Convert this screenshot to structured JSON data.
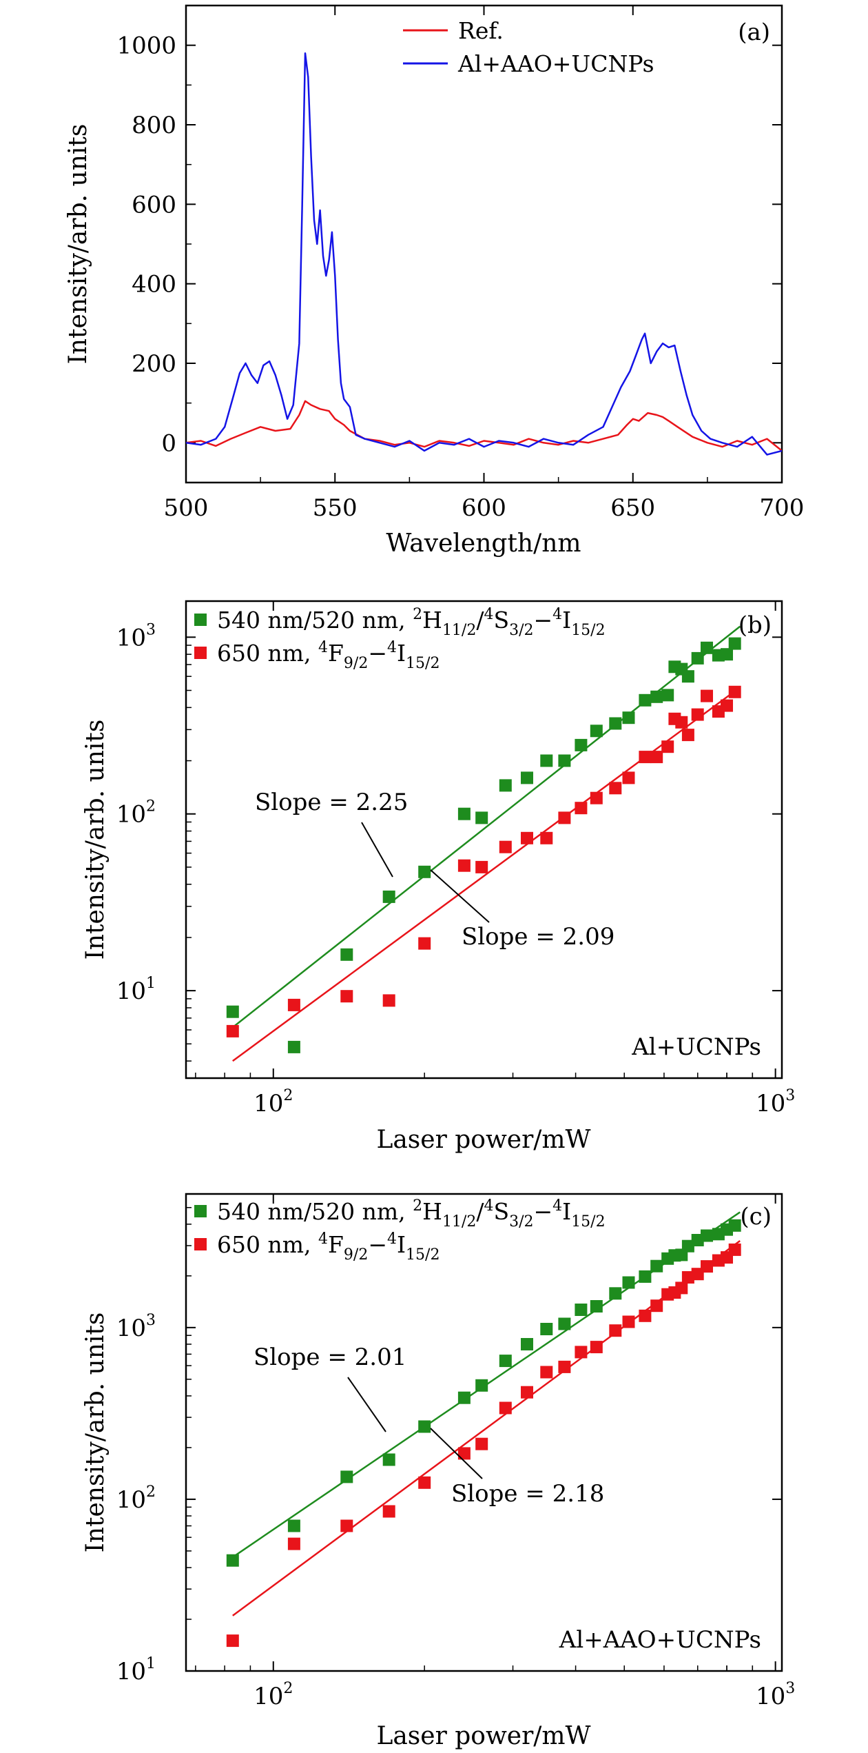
{
  "chart_data": [
    {
      "type": "line",
      "panel_tag": "(a)",
      "xlabel": "Wavelength/nm",
      "ylabel": "Intensity/arb. units",
      "xlim": [
        500,
        700
      ],
      "ylim": [
        -100,
        1100
      ],
      "x_ticks": [
        "500",
        "550",
        "600",
        "650",
        "700"
      ],
      "y_ticks": [
        "0",
        "200",
        "400",
        "600",
        "800",
        "1000"
      ],
      "legend_position": "top-right",
      "series": [
        {
          "name": "Ref.",
          "color": "#e8141a",
          "x": [
            500,
            505,
            510,
            515,
            520,
            525,
            530,
            535,
            538,
            540,
            542,
            545,
            548,
            550,
            553,
            555,
            560,
            565,
            570,
            575,
            580,
            585,
            590,
            595,
            600,
            605,
            610,
            615,
            620,
            625,
            630,
            635,
            640,
            645,
            648,
            650,
            652,
            655,
            658,
            660,
            662,
            665,
            668,
            670,
            675,
            680,
            685,
            690,
            695,
            700
          ],
          "y": [
            0,
            5,
            -8,
            10,
            25,
            40,
            30,
            35,
            70,
            105,
            95,
            85,
            80,
            60,
            45,
            30,
            10,
            5,
            -5,
            0,
            -10,
            5,
            0,
            -8,
            5,
            0,
            -5,
            10,
            0,
            -5,
            5,
            0,
            10,
            20,
            45,
            60,
            55,
            75,
            70,
            65,
            55,
            40,
            25,
            15,
            0,
            -10,
            5,
            -5,
            10,
            -20
          ]
        },
        {
          "name": "Al+AAO+UCNPs",
          "color": "#1414e6",
          "x": [
            500,
            505,
            510,
            513,
            516,
            518,
            520,
            522,
            524,
            526,
            528,
            530,
            532,
            534,
            536,
            538,
            539,
            540,
            541,
            542,
            543,
            544,
            545,
            546,
            547,
            548,
            549,
            550,
            551,
            552,
            553,
            555,
            557,
            560,
            565,
            570,
            575,
            580,
            585,
            590,
            595,
            600,
            605,
            610,
            615,
            620,
            625,
            630,
            635,
            640,
            643,
            646,
            649,
            651,
            653,
            654,
            656,
            658,
            660,
            662,
            664,
            666,
            668,
            670,
            673,
            676,
            680,
            685,
            690,
            695,
            700
          ],
          "y": [
            0,
            -5,
            10,
            40,
            120,
            175,
            200,
            170,
            150,
            195,
            205,
            170,
            120,
            60,
            95,
            250,
            600,
            980,
            920,
            720,
            560,
            500,
            585,
            470,
            420,
            460,
            530,
            420,
            260,
            150,
            110,
            90,
            20,
            10,
            0,
            -10,
            5,
            -20,
            0,
            -5,
            10,
            -10,
            5,
            0,
            -10,
            10,
            0,
            -5,
            20,
            40,
            90,
            140,
            180,
            220,
            260,
            275,
            200,
            230,
            250,
            240,
            245,
            180,
            120,
            70,
            30,
            10,
            0,
            -10,
            15,
            -30,
            -20
          ]
        }
      ]
    },
    {
      "type": "scatter",
      "panel_tag": "(b)",
      "annotation_label": "Al+UCNPs",
      "xlabel": "Laser power/mW",
      "ylabel": "Intensity/arb. units",
      "x_scale": "log",
      "y_scale": "log",
      "xlim": [
        67,
        1030
      ],
      "ylim": [
        3.2,
        1600
      ],
      "legend_position": "top-left",
      "series": [
        {
          "name": "540 nm/520 nm, ²H₁₁/₂/⁴S₃/₂−⁴I₁₅/₂",
          "color": "#1e8c1e",
          "x": [
            83,
            110,
            140,
            170,
            200,
            240,
            260,
            290,
            320,
            350,
            380,
            410,
            440,
            480,
            510,
            550,
            580,
            610,
            630,
            650,
            670,
            700,
            730,
            770,
            800,
            830
          ],
          "y": [
            7.6,
            4.8,
            16,
            34,
            47,
            100,
            95,
            145,
            160,
            200,
            200,
            245,
            295,
            325,
            350,
            440,
            460,
            470,
            680,
            660,
            600,
            760,
            870,
            790,
            800,
            920
          ],
          "fit": {
            "x": [
              83,
              850
            ],
            "y": [
              6.2,
              1150
            ]
          }
        },
        {
          "name": "650 nm, ⁴F₉/₂−⁴I₁₅/₂",
          "color": "#e8141a",
          "x": [
            83,
            110,
            140,
            170,
            200,
            240,
            260,
            290,
            320,
            350,
            380,
            410,
            440,
            480,
            510,
            550,
            580,
            610,
            630,
            650,
            670,
            700,
            730,
            770,
            800,
            830
          ],
          "y": [
            5.9,
            8.3,
            9.3,
            8.8,
            18.5,
            51,
            50,
            65,
            73,
            73,
            95,
            108,
            123,
            140,
            160,
            210,
            210,
            240,
            345,
            330,
            280,
            365,
            465,
            380,
            410,
            490
          ],
          "fit": {
            "x": [
              83,
              850
            ],
            "y": [
              4.0,
              520
            ]
          }
        }
      ],
      "annotations": [
        "Slope = 2.25",
        "Slope = 2.09"
      ]
    },
    {
      "type": "scatter",
      "panel_tag": "(c)",
      "annotation_label": "Al+AAO+UCNPs",
      "xlabel": "Laser power/mW",
      "ylabel": "Intensity/arb. units",
      "x_scale": "log",
      "y_scale": "log",
      "xlim": [
        67,
        1030
      ],
      "ylim": [
        10,
        6000
      ],
      "legend_position": "top-left",
      "series": [
        {
          "name": "540 nm/520 nm, ²H₁₁/₂/⁴S₃/₂−⁴I₁₅/₂",
          "color": "#1e8c1e",
          "x": [
            83,
            110,
            140,
            170,
            200,
            240,
            260,
            290,
            320,
            350,
            380,
            410,
            440,
            480,
            510,
            550,
            580,
            610,
            630,
            650,
            670,
            700,
            730,
            770,
            800,
            830
          ],
          "y": [
            44,
            70,
            135,
            170,
            265,
            390,
            460,
            640,
            800,
            980,
            1050,
            1270,
            1330,
            1580,
            1830,
            1980,
            2280,
            2520,
            2630,
            2650,
            2980,
            3230,
            3430,
            3500,
            3720,
            3930
          ],
          "fit": {
            "x": [
              83,
              850
            ],
            "y": [
              46,
              4700
            ]
          }
        },
        {
          "name": "650 nm, ⁴F₉/₂−⁴I₁₅/₂",
          "color": "#e8141a",
          "x": [
            83,
            110,
            140,
            170,
            200,
            240,
            260,
            290,
            320,
            350,
            380,
            410,
            440,
            480,
            510,
            550,
            580,
            610,
            630,
            650,
            670,
            700,
            730,
            770,
            800,
            830
          ],
          "y": [
            15,
            55,
            70,
            85,
            125,
            185,
            210,
            340,
            420,
            550,
            590,
            720,
            770,
            960,
            1080,
            1170,
            1340,
            1560,
            1600,
            1700,
            1960,
            2050,
            2270,
            2460,
            2560,
            2840
          ],
          "fit": {
            "x": [
              83,
              850
            ],
            "y": [
              21,
              3200
            ]
          }
        }
      ],
      "annotations": [
        "Slope = 2.01",
        "Slope = 2.18"
      ]
    }
  ]
}
